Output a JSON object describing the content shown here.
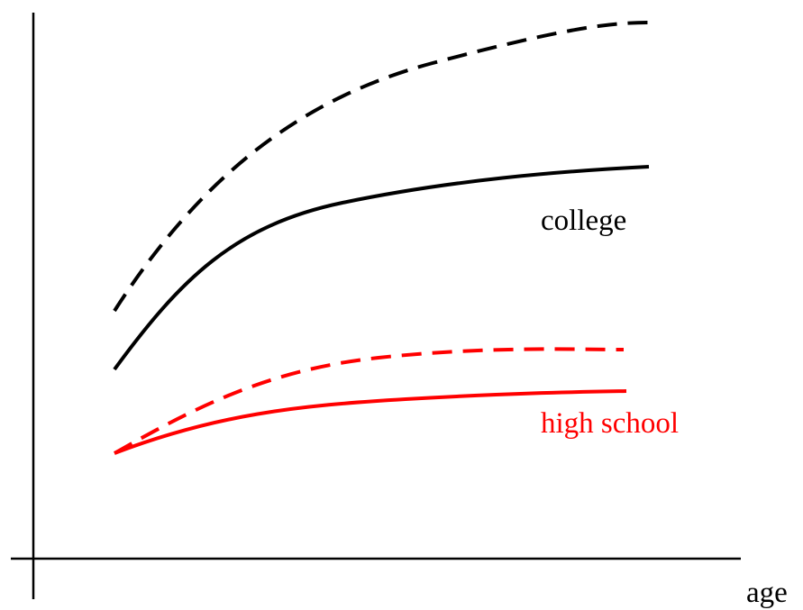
{
  "axis": {
    "x_label": "age"
  },
  "curves": {
    "college_label": "college",
    "high_school_label": "high school"
  }
}
